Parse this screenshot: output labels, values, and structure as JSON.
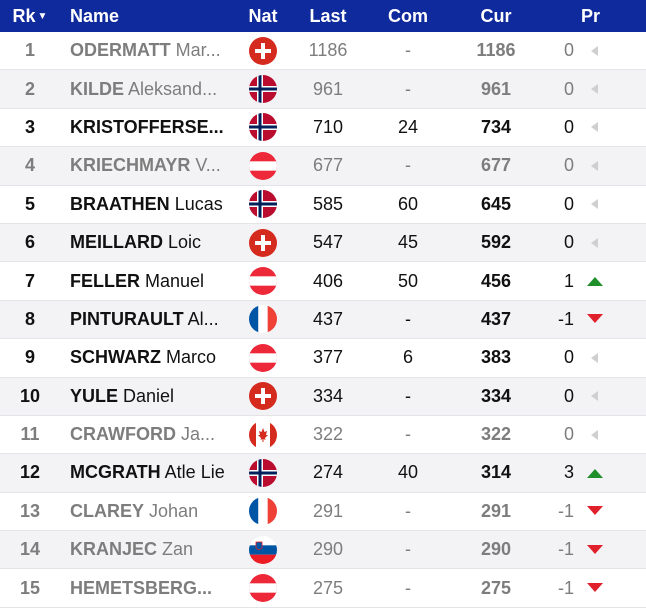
{
  "header": {
    "rk": "Rk",
    "name": "Name",
    "nat": "Nat",
    "last": "Last",
    "com": "Com",
    "cur": "Cur",
    "pr": "Pr"
  },
  "rows": [
    {
      "rk": "1",
      "surname": "ODERMATT",
      "given": "Mar...",
      "flag": "SUI",
      "last": "1186",
      "com": "-",
      "cur": "1186",
      "pr": "0",
      "trend": "same",
      "dim": true
    },
    {
      "rk": "2",
      "surname": "KILDE",
      "given": "Aleksand...",
      "flag": "NOR",
      "last": "961",
      "com": "-",
      "cur": "961",
      "pr": "0",
      "trend": "same",
      "dim": true
    },
    {
      "rk": "3",
      "surname": "KRISTOFFERSE...",
      "given": "",
      "flag": "NOR",
      "last": "710",
      "com": "24",
      "cur": "734",
      "pr": "0",
      "trend": "same",
      "dim": false
    },
    {
      "rk": "4",
      "surname": "KRIECHMAYR",
      "given": "V...",
      "flag": "AUT",
      "last": "677",
      "com": "-",
      "cur": "677",
      "pr": "0",
      "trend": "same",
      "dim": true
    },
    {
      "rk": "5",
      "surname": "BRAATHEN",
      "given": "Lucas",
      "flag": "NOR",
      "last": "585",
      "com": "60",
      "cur": "645",
      "pr": "0",
      "trend": "same",
      "dim": false
    },
    {
      "rk": "6",
      "surname": "MEILLARD",
      "given": "Loic",
      "flag": "SUI",
      "last": "547",
      "com": "45",
      "cur": "592",
      "pr": "0",
      "trend": "same",
      "dim": false
    },
    {
      "rk": "7",
      "surname": "FELLER",
      "given": "Manuel",
      "flag": "AUT",
      "last": "406",
      "com": "50",
      "cur": "456",
      "pr": "1",
      "trend": "up",
      "dim": false
    },
    {
      "rk": "8",
      "surname": "PINTURAULT",
      "given": "Al...",
      "flag": "FRA",
      "last": "437",
      "com": "-",
      "cur": "437",
      "pr": "-1",
      "trend": "down",
      "dim": false
    },
    {
      "rk": "9",
      "surname": "SCHWARZ",
      "given": "Marco",
      "flag": "AUT",
      "last": "377",
      "com": "6",
      "cur": "383",
      "pr": "0",
      "trend": "same",
      "dim": false
    },
    {
      "rk": "10",
      "surname": "YULE",
      "given": "Daniel",
      "flag": "SUI",
      "last": "334",
      "com": "-",
      "cur": "334",
      "pr": "0",
      "trend": "same",
      "dim": false
    },
    {
      "rk": "11",
      "surname": "CRAWFORD",
      "given": "Ja...",
      "flag": "CAN",
      "last": "322",
      "com": "-",
      "cur": "322",
      "pr": "0",
      "trend": "same",
      "dim": true
    },
    {
      "rk": "12",
      "surname": "MCGRATH",
      "given": "Atle Lie",
      "flag": "NOR",
      "last": "274",
      "com": "40",
      "cur": "314",
      "pr": "3",
      "trend": "up",
      "dim": false
    },
    {
      "rk": "13",
      "surname": "CLAREY",
      "given": "Johan",
      "flag": "FRA",
      "last": "291",
      "com": "-",
      "cur": "291",
      "pr": "-1",
      "trend": "down",
      "dim": true
    },
    {
      "rk": "14",
      "surname": "KRANJEC",
      "given": "Zan",
      "flag": "SLO",
      "last": "290",
      "com": "-",
      "cur": "290",
      "pr": "-1",
      "trend": "down",
      "dim": true
    },
    {
      "rk": "15",
      "surname": "HEMETSBERG...",
      "given": "",
      "flag": "AUT",
      "last": "275",
      "com": "-",
      "cur": "275",
      "pr": "-1",
      "trend": "down",
      "dim": true
    }
  ],
  "colors": {
    "header_bg": "#0f2a9c",
    "up": "#1f8f2a",
    "down": "#e0202a",
    "same": "#cfcfcf"
  }
}
